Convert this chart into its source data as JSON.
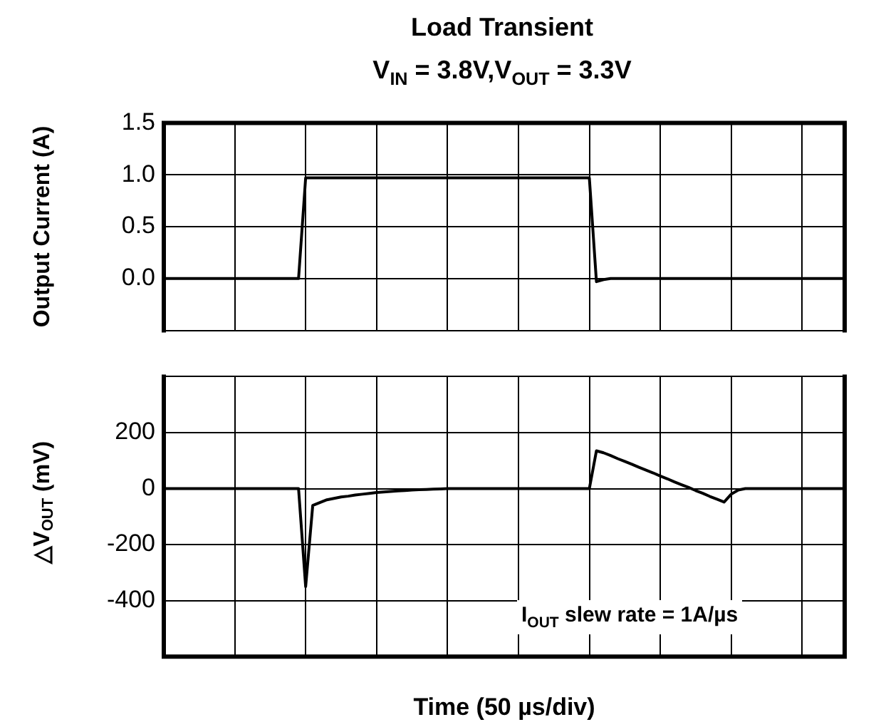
{
  "chart_data": [
    {
      "type": "line",
      "title": "Load Transient",
      "subtitle": "V$_{IN}$ = 3.8V,V$_{OUT}$ = 3.3V",
      "ylabel": "Output Current (A)",
      "categories": [
        null,
        null,
        null,
        null,
        null,
        null,
        null,
        null,
        null,
        null,
        null,
        null,
        null,
        null,
        null,
        null,
        null,
        null,
        null,
        null,
        null,
        null,
        null,
        null,
        null,
        null,
        null,
        null,
        null,
        null,
        null,
        null,
        null,
        null,
        null,
        null,
        null,
        null,
        null,
        null,
        null,
        null,
        null,
        null,
        null,
        null,
        null,
        null,
        null,
        null,
        null,
        null,
        null,
        null,
        null,
        null,
        null,
        null,
        null,
        null,
        null,
        null,
        null,
        null,
        null,
        null,
        null,
        null,
        null,
        null,
        null,
        null,
        null,
        null,
        null,
        null,
        null,
        null,
        null,
        null,
        null,
        null,
        null,
        null,
        null,
        null,
        null,
        null,
        null,
        null,
        null,
        null,
        null,
        null,
        null,
        null,
        null
      ],
      "ylim": [
        -0.5,
        1.5
      ],
      "yticks": [
        {
          "value": -0.5,
          "label": null
        },
        {
          "value": 0,
          "label": "0.0"
        },
        0.5,
        {
          "value": 1,
          "label": "1.0"
        },
        1.5
      ],
      "grid": true,
      "legend": false,
      "tick_labels": "y",
      "marker": "none",
      "line_style": "solid",
      "series": [
        {
          "color": "#000000",
          "values": [
            0,
            0,
            0,
            0,
            0,
            0,
            0,
            0,
            0,
            0,
            0,
            0,
            0,
            0,
            0,
            0,
            0,
            0,
            0,
            0,
            0.97,
            0.97,
            0.97,
            0.97,
            0.97,
            0.97,
            0.97,
            0.97,
            0.97,
            0.97,
            0.97,
            0.97,
            0.97,
            0.97,
            0.97,
            0.97,
            0.97,
            0.97,
            0.97,
            0.97,
            0.97,
            0.97,
            0.97,
            0.97,
            0.97,
            0.97,
            0.97,
            0.97,
            0.97,
            0.97,
            0.97,
            0.97,
            0.97,
            0.97,
            0.97,
            0.97,
            0.97,
            0.97,
            0.97,
            0.97,
            0.97,
            -0.03,
            -0.01,
            0,
            0,
            0,
            0,
            0,
            0,
            0,
            0,
            0,
            0,
            0,
            0,
            0,
            0,
            0,
            0,
            0,
            0,
            0,
            0,
            0,
            0,
            0,
            0,
            0,
            0,
            0,
            0,
            0,
            0,
            0,
            0,
            0,
            0
          ]
        }
      ]
    },
    {
      "type": "line",
      "xlabel": "Time (50 µs/div)",
      "ylabel": "△V$_{OUT}$ (mV)",
      "annotations": [
        "I$_{OUT}$ slew rate = 1A/µs"
      ],
      "categories": [
        null,
        null,
        null,
        null,
        null,
        null,
        null,
        null,
        null,
        null,
        null,
        null,
        null,
        null,
        null,
        null,
        null,
        null,
        null,
        null,
        null,
        null,
        null,
        null,
        null,
        null,
        null,
        null,
        null,
        null,
        null,
        null,
        null,
        null,
        null,
        null,
        null,
        null,
        null,
        null,
        null,
        null,
        null,
        null,
        null,
        null,
        null,
        null,
        null,
        null,
        null,
        null,
        null,
        null,
        null,
        null,
        null,
        null,
        null,
        null,
        null,
        null,
        null,
        null,
        null,
        null,
        null,
        null,
        null,
        null,
        null,
        null,
        null,
        null,
        null,
        null,
        null,
        null,
        null,
        null,
        null,
        null,
        null,
        null,
        null,
        null,
        null,
        null,
        null,
        null,
        null,
        null,
        null,
        null,
        null,
        null,
        null
      ],
      "ylim": [
        -600,
        400
      ],
      "yticks": [
        {
          "value": -600,
          "label": null
        },
        -400,
        -200,
        0,
        200,
        {
          "value": 400,
          "label": null
        }
      ],
      "grid": true,
      "legend": false,
      "tick_labels": "y",
      "marker": "none",
      "line_style": "solid",
      "series": [
        {
          "color": "#000000",
          "values": [
            0,
            0,
            0,
            0,
            0,
            0,
            0,
            0,
            0,
            0,
            0,
            0,
            0,
            0,
            0,
            0,
            0,
            0,
            0,
            0,
            -350,
            -60,
            -50,
            -40,
            -35,
            -30,
            -27,
            -23,
            -20,
            -17,
            -14,
            -12,
            -10,
            -8,
            -7,
            -5,
            -4,
            -3,
            -2,
            -1,
            0,
            0,
            0,
            0,
            0,
            0,
            0,
            0,
            0,
            0,
            0,
            0,
            0,
            0,
            0,
            0,
            0,
            0,
            0,
            0,
            0,
            135,
            128,
            118,
            107,
            97,
            87,
            76,
            66,
            56,
            45,
            35,
            24,
            14,
            4,
            -7,
            -17,
            -28,
            -38,
            -48,
            -20,
            -5,
            0,
            0,
            0,
            0,
            0,
            0,
            0,
            0,
            0,
            0,
            0,
            0,
            0,
            0,
            0
          ]
        }
      ]
    }
  ]
}
